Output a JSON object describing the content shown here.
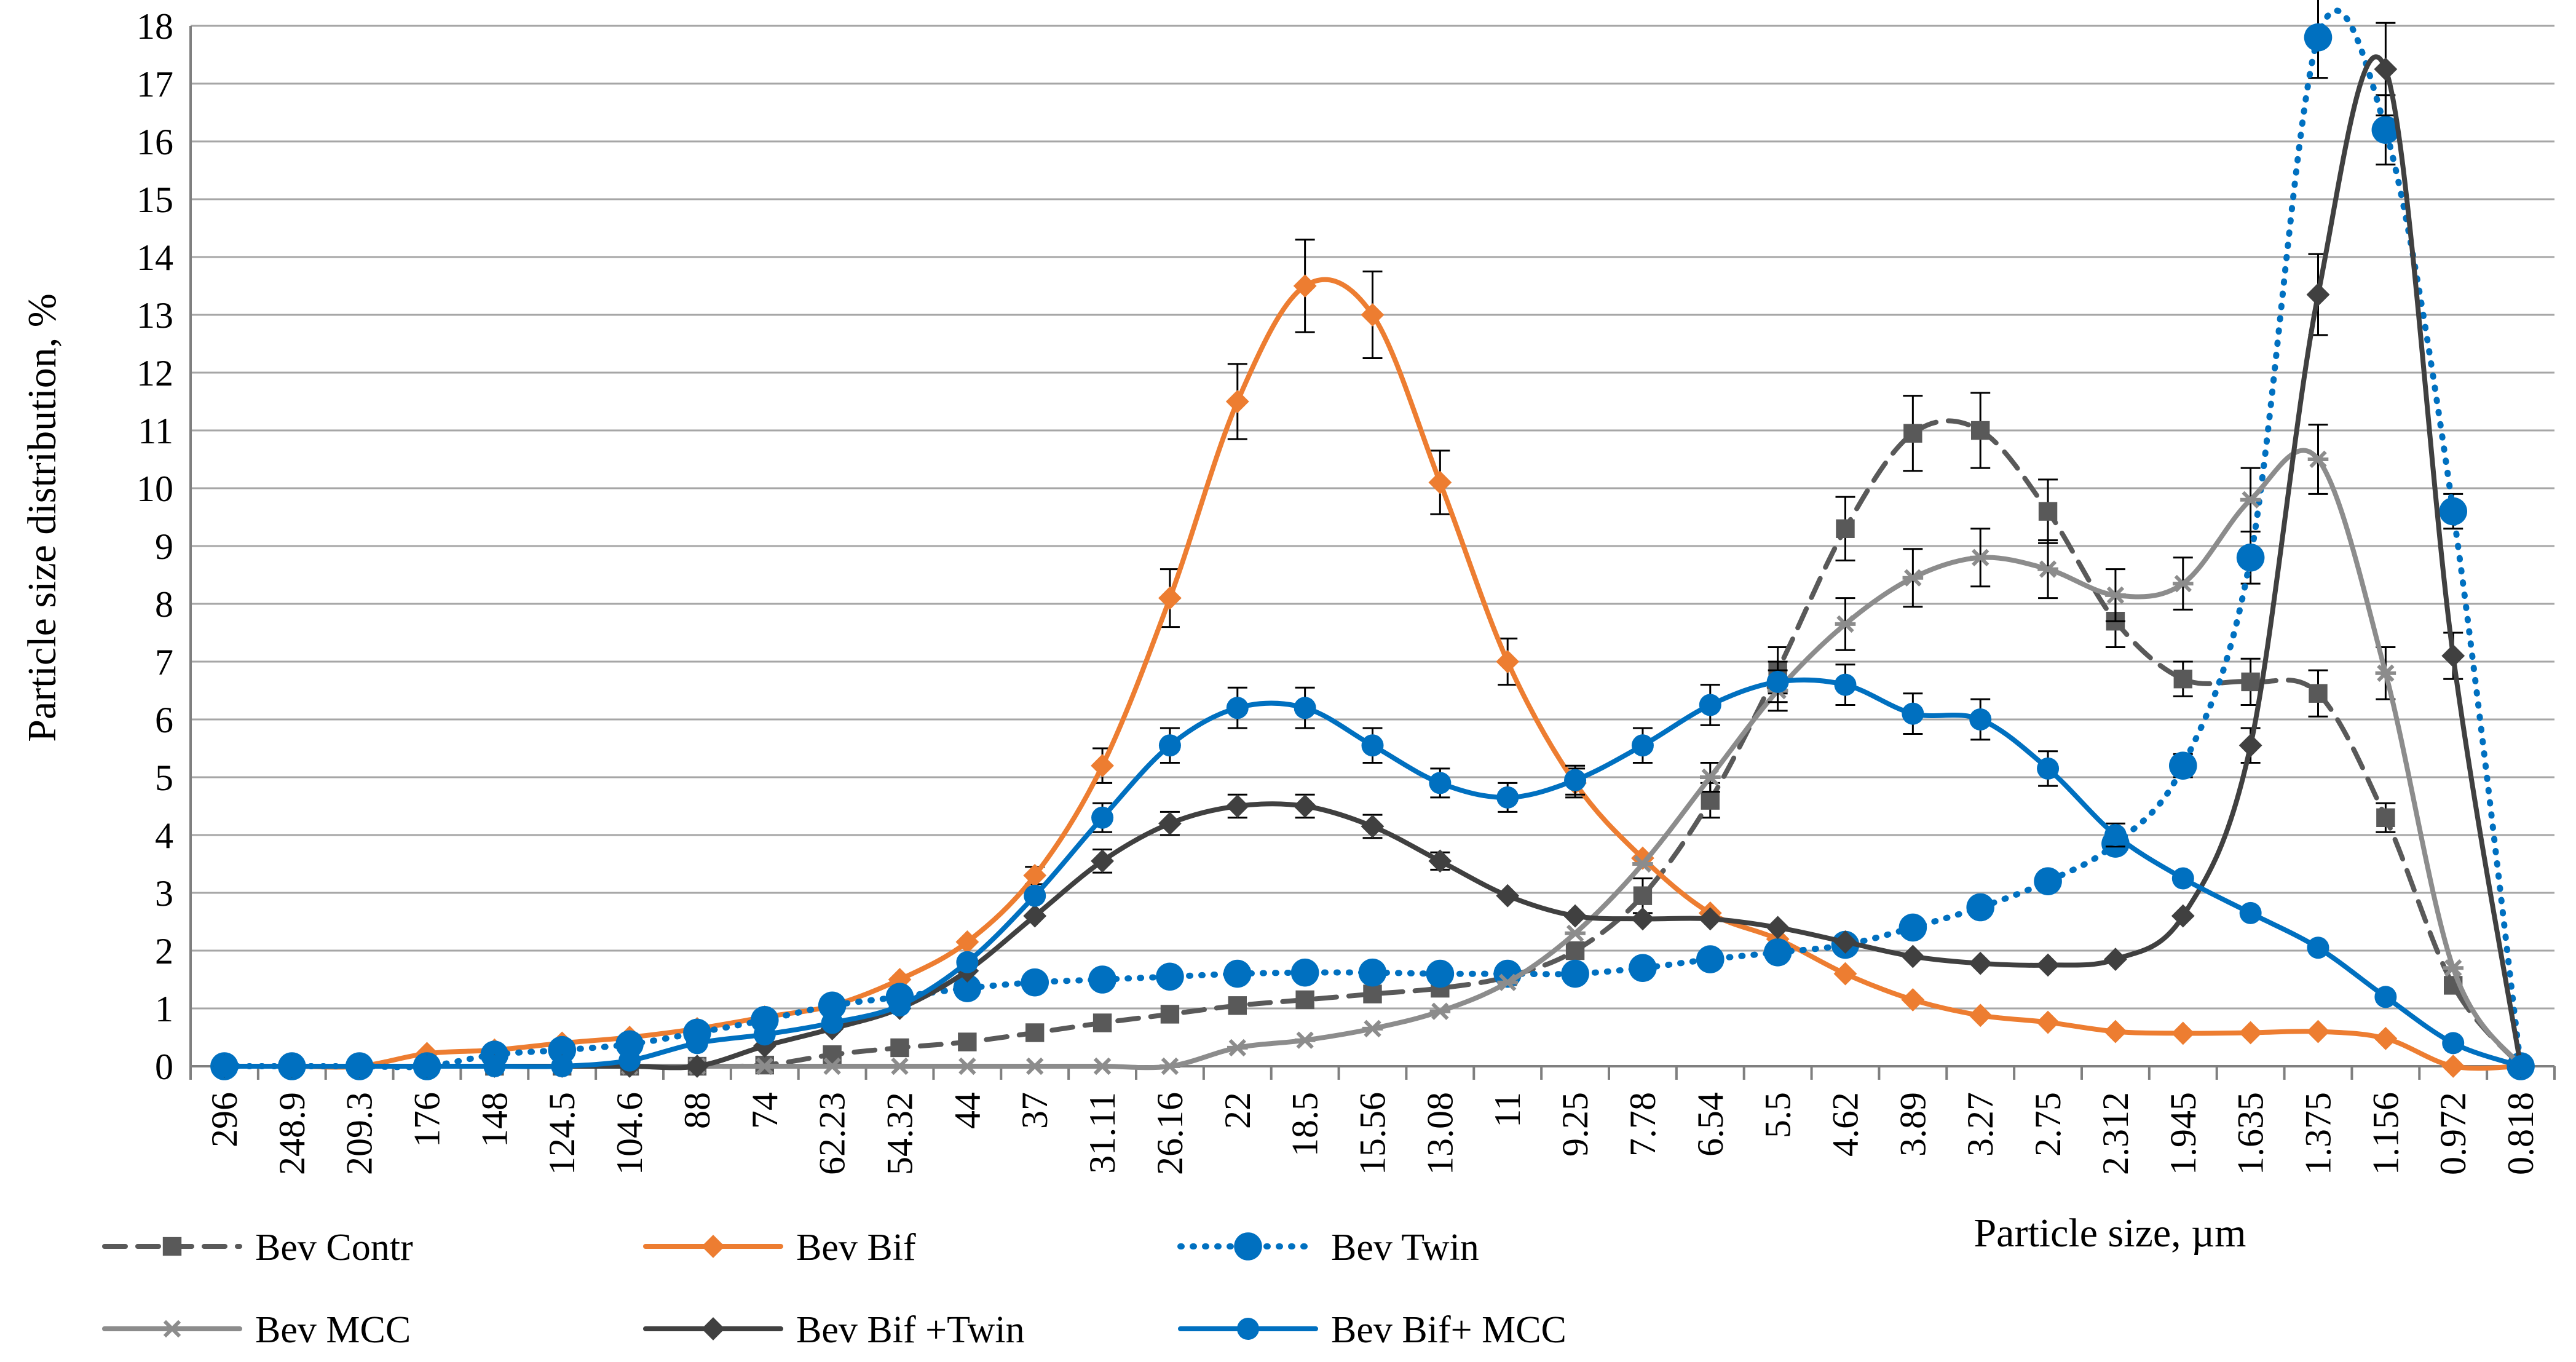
{
  "chart_data": {
    "type": "line",
    "title": "",
    "xlabel": "Particle size, µm",
    "ylabel": "Particle size distribution, %",
    "ylim": [
      0,
      18
    ],
    "yticks": [
      0,
      1,
      2,
      3,
      4,
      5,
      6,
      7,
      8,
      9,
      10,
      11,
      12,
      13,
      14,
      15,
      16,
      17,
      18
    ],
    "grid": "horizontal",
    "legend_position": "bottom",
    "categories": [
      "296",
      "248.9",
      "209.3",
      "176",
      "148",
      "124.5",
      "104.6",
      "88",
      "74",
      "62.23",
      "54.32",
      "44",
      "37",
      "31.11",
      "26.16",
      "22",
      "18.5",
      "15.56",
      "13.08",
      "11",
      "9.25",
      "7.78",
      "6.54",
      "5.5",
      "4.62",
      "3.89",
      "3.27",
      "2.75",
      "2.312",
      "1.945",
      "1.635",
      "1.375",
      "1.156",
      "0.972",
      "0.818"
    ],
    "series": [
      {
        "name": "Bev Contr",
        "color": "#595959",
        "dash": "dash",
        "marker": "square",
        "values": [
          0,
          0,
          0,
          0,
          0,
          0,
          0,
          0,
          0.02,
          0.2,
          0.32,
          0.42,
          0.58,
          0.75,
          0.9,
          1.05,
          1.15,
          1.25,
          1.35,
          1.55,
          2.0,
          2.95,
          4.6,
          6.85,
          9.3,
          10.95,
          11.0,
          9.6,
          7.7,
          6.7,
          6.65,
          6.45,
          4.3,
          1.4,
          0
        ],
        "error": [
          0,
          0,
          0,
          0,
          0,
          0,
          0,
          0,
          0,
          0,
          0,
          0,
          0,
          0,
          0,
          0,
          0,
          0,
          0,
          0,
          0,
          0.3,
          0.3,
          0.4,
          0.55,
          0.65,
          0.65,
          0.55,
          0.45,
          0.3,
          0.4,
          0.4,
          0.25,
          0,
          0
        ]
      },
      {
        "name": "Bev Bif",
        "color": "#ED7D31",
        "dash": "solid",
        "marker": "diamond",
        "values": [
          0,
          0,
          0,
          0.22,
          0.28,
          0.4,
          0.5,
          0.65,
          0.85,
          1.05,
          1.5,
          2.15,
          3.3,
          5.2,
          8.1,
          11.5,
          13.5,
          13.0,
          10.1,
          7.0,
          4.9,
          3.6,
          2.65,
          2.2,
          1.6,
          1.15,
          0.88,
          0.76,
          0.6,
          0.57,
          0.58,
          0.6,
          0.48,
          0,
          0
        ],
        "error": [
          0,
          0,
          0,
          0,
          0,
          0,
          0,
          0,
          0,
          0,
          0,
          0,
          0.15,
          0.3,
          0.5,
          0.65,
          0.8,
          0.75,
          0.55,
          0.4,
          0.25,
          0,
          0,
          0,
          0,
          0,
          0,
          0,
          0,
          0,
          0,
          0,
          0,
          0,
          0
        ]
      },
      {
        "name": "Bev Twin",
        "color": "#0070C0",
        "dash": "dot",
        "marker": "circle",
        "values": [
          0,
          0,
          0,
          0,
          0.2,
          0.28,
          0.38,
          0.58,
          0.8,
          1.05,
          1.2,
          1.35,
          1.45,
          1.5,
          1.55,
          1.6,
          1.62,
          1.62,
          1.6,
          1.6,
          1.6,
          1.7,
          1.85,
          1.97,
          2.1,
          2.4,
          2.75,
          3.2,
          3.85,
          5.2,
          8.8,
          17.8,
          16.2,
          9.6,
          0
        ],
        "error": [
          0,
          0,
          0,
          0,
          0,
          0,
          0,
          0,
          0,
          0,
          0,
          0,
          0,
          0,
          0,
          0,
          0,
          0,
          0,
          0,
          0,
          0,
          0,
          0,
          0,
          0,
          0,
          0,
          0,
          0.2,
          0.45,
          0.7,
          0.6,
          0.3,
          0
        ]
      },
      {
        "name": "Bev MCC",
        "color": "#8C8C8C",
        "dash": "solid",
        "marker": "star",
        "values": [
          0,
          0,
          0,
          0,
          0,
          0,
          0,
          0,
          0,
          0,
          0,
          0,
          0,
          0,
          0,
          0.32,
          0.45,
          0.65,
          0.95,
          1.45,
          2.3,
          3.5,
          5.0,
          6.5,
          7.65,
          8.45,
          8.8,
          8.6,
          8.15,
          8.35,
          9.8,
          10.5,
          6.8,
          1.7,
          0
        ],
        "error": [
          0,
          0,
          0,
          0,
          0,
          0,
          0,
          0,
          0,
          0,
          0,
          0,
          0,
          0,
          0,
          0,
          0,
          0,
          0,
          0,
          0,
          0,
          0.25,
          0.35,
          0.45,
          0.5,
          0.5,
          0.5,
          0.45,
          0.45,
          0.55,
          0.6,
          0.45,
          0,
          0
        ]
      },
      {
        "name": "Bev Bif +Twin",
        "color": "#404040",
        "dash": "solid",
        "marker": "diamond",
        "values": [
          0,
          0,
          0,
          0,
          0,
          0,
          0,
          0,
          0.35,
          0.65,
          1.0,
          1.65,
          2.6,
          3.55,
          4.2,
          4.5,
          4.5,
          4.15,
          3.55,
          2.95,
          2.6,
          2.55,
          2.55,
          2.4,
          2.15,
          1.9,
          1.78,
          1.75,
          1.85,
          2.6,
          5.55,
          13.35,
          17.25,
          7.1,
          0
        ],
        "error": [
          0,
          0,
          0,
          0,
          0,
          0,
          0,
          0,
          0,
          0,
          0,
          0,
          0,
          0.2,
          0.2,
          0.2,
          0.2,
          0.2,
          0.15,
          0,
          0,
          0,
          0,
          0,
          0,
          0,
          0,
          0,
          0,
          0,
          0.3,
          0.7,
          0.8,
          0.4,
          0
        ]
      },
      {
        "name": "Bev Bif+ MCC",
        "color": "#0070C0",
        "dash": "solid",
        "marker": "circle",
        "values": [
          0,
          0,
          0,
          0,
          0,
          0,
          0.1,
          0.4,
          0.55,
          0.75,
          1.05,
          1.8,
          2.95,
          4.3,
          5.55,
          6.2,
          6.2,
          5.55,
          4.9,
          4.65,
          4.95,
          5.55,
          6.25,
          6.65,
          6.6,
          6.1,
          6.0,
          5.15,
          4.0,
          3.25,
          2.65,
          2.05,
          1.2,
          0.4,
          0
        ],
        "error": [
          0,
          0,
          0,
          0,
          0,
          0,
          0,
          0,
          0,
          0,
          0,
          0,
          0,
          0.25,
          0.3,
          0.35,
          0.35,
          0.3,
          0.25,
          0.25,
          0.25,
          0.3,
          0.35,
          0.35,
          0.35,
          0.35,
          0.35,
          0.3,
          0.2,
          0,
          0,
          0,
          0,
          0,
          0
        ]
      }
    ]
  }
}
